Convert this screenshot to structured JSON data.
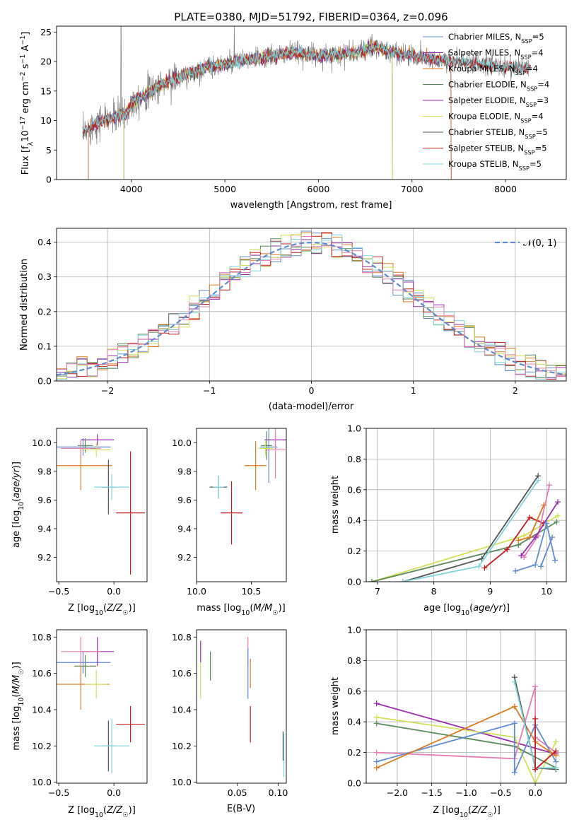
{
  "title": "PLATE=0380, MJD=51792, FIBERID=0364, z=0.096",
  "colors": {
    "Chabrier MILES": "#5f8dd3",
    "Salpeter MILES": "#9b2fae",
    "Kroupa MILES": "#e07a1f",
    "Chabrier ELODIE": "#5a8a5a",
    "Salpeter ELODIE": "#9b2fae",
    "Kroupa ELODIE": "#d4e157",
    "Chabrier STELIB": "#555555",
    "Salpeter STELIB": "#c41e1e",
    "Kroupa STELIB": "#7fd6dd",
    "extra_pink": "#e67fb5",
    "gaussian": "#5f8dd3",
    "data": "#808080"
  },
  "chart_data": [
    {
      "id": "spectrum",
      "type": "line",
      "xlabel": "wavelength [Angstrom, rest frame]",
      "ylabel": "Flux [f_λ10^-17 erg cm^-2 s^-1 A^-1]",
      "xlim": [
        3200,
        8650
      ],
      "ylim": [
        0,
        26
      ],
      "xticks": [
        4000,
        5000,
        6000,
        7000,
        8000
      ],
      "yticks": [
        0,
        5,
        10,
        15,
        20,
        25
      ],
      "legend_position": "top-right",
      "legend": [
        {
          "name": "Chabrier MILES",
          "label": "Chabrier MILES, N",
          "sub": "SSP",
          "rest": "=5"
        },
        {
          "name": "Salpeter MILES",
          "label": "Salpeter MILES, N",
          "sub": "SSP",
          "rest": "=4"
        },
        {
          "name": "Kroupa MILES",
          "label": "Kroupa MILES, N",
          "sub": "SSP",
          "rest": "=4"
        },
        {
          "name": "Chabrier ELODIE",
          "label": "Chabrier ELODIE, N",
          "sub": "SSP",
          "rest": "=4"
        },
        {
          "name": "Salpeter ELODIE",
          "label": "Salpeter ELODIE, N",
          "sub": "SSP",
          "rest": "=3"
        },
        {
          "name": "Kroupa ELODIE",
          "label": "Kroupa ELODIE, N",
          "sub": "SSP",
          "rest": "=4"
        },
        {
          "name": "Chabrier STELIB",
          "label": "Chabrier STELIB, N",
          "sub": "SSP",
          "rest": "=5"
        },
        {
          "name": "Salpeter STELIB",
          "label": "Salpeter STELIB, N",
          "sub": "SSP",
          "rest": "=5"
        },
        {
          "name": "Kroupa STELIB",
          "label": "Kroupa STELIB, N",
          "sub": "SSP",
          "rest": "=5"
        }
      ],
      "continuum": {
        "x": [
          3480,
          3600,
          3800,
          3950,
          4000,
          4200,
          4400,
          4600,
          4800,
          5000,
          5200,
          5400,
          5600,
          5800,
          6000,
          6200,
          6400,
          6600,
          6800,
          7000,
          7200,
          7420
        ],
        "y": [
          7.5,
          9.5,
          10.5,
          11,
          13,
          15,
          16.8,
          17.8,
          19,
          19.5,
          20.2,
          20.6,
          21.2,
          21.5,
          21,
          21.2,
          21.5,
          22.5,
          21.5,
          21,
          20.5,
          20
        ]
      },
      "noisy_data_x_range": [
        3480,
        8270
      ]
    },
    {
      "id": "residuals",
      "type": "histogram",
      "xlabel": "(data-model)/error",
      "ylabel": "Normed distribution",
      "xlim": [
        -2.5,
        2.5
      ],
      "ylim": [
        0,
        0.44
      ],
      "xticks": [
        -2,
        -1,
        0,
        1,
        2
      ],
      "yticks": [
        0.0,
        0.1,
        0.2,
        0.3,
        0.4
      ],
      "grid": true,
      "legend": [
        {
          "label": "𝒩(0, 1)"
        }
      ],
      "legend_position": "top-right",
      "bin_width": 0.1,
      "bin_start": -2.5
    },
    {
      "id": "age_vs_Z",
      "type": "errorbar",
      "xlabel": "Z [log10(Z/Z☉)]",
      "ylabel": "age [log10(age/yr)]",
      "xlim": [
        -0.52,
        0.3
      ],
      "ylim": [
        9.03,
        10.1
      ],
      "xticks": [
        -0.5,
        0.0
      ],
      "yticks": [
        9.2,
        9.4,
        9.6,
        9.8,
        10.0
      ],
      "points": [
        {
          "series": "Chabrier MILES",
          "x": -0.28,
          "y": 9.97,
          "xerr": 0.25,
          "yerr": 0.06
        },
        {
          "series": "Salpeter MILES",
          "x": -0.15,
          "y": 10.02,
          "xerr": 0.15,
          "yerr": 0.04
        },
        {
          "series": "Kroupa MILES",
          "x": -0.3,
          "y": 9.84,
          "xerr": 0.28,
          "yerr": 0.17
        },
        {
          "series": "Chabrier ELODIE",
          "x": -0.26,
          "y": 9.98,
          "xerr": 0.07,
          "yerr": 0.05
        },
        {
          "series": "extra_pink",
          "x": -0.3,
          "y": 9.96,
          "xerr": 0.18,
          "yerr": 0.06
        },
        {
          "series": "Kroupa ELODIE",
          "x": -0.16,
          "y": 9.95,
          "xerr": 0.13,
          "yerr": 0.05
        },
        {
          "series": "Chabrier STELIB",
          "x": -0.05,
          "y": 9.69,
          "xerr": 0.06,
          "yerr": 0.19
        },
        {
          "series": "Salpeter STELIB",
          "x": 0.15,
          "y": 9.51,
          "xerr": 0.13,
          "yerr": 0.43
        },
        {
          "series": "Kroupa STELIB",
          "x": -0.02,
          "y": 9.69,
          "xerr": 0.16,
          "yerr": 0.09
        }
      ]
    },
    {
      "id": "age_vs_mass",
      "type": "errorbar",
      "xlabel": "mass [log10(M/M☉)]",
      "xlim": [
        10.0,
        10.82
      ],
      "ylim": [
        9.03,
        10.1
      ],
      "xticks": [
        10.0,
        10.5
      ],
      "yticks": [
        9.2,
        9.4,
        9.6,
        9.8,
        10.0
      ],
      "points": [
        {
          "series": "Chabrier MILES",
          "x": 10.66,
          "y": 9.97,
          "xerr": 0.08,
          "yerr": 0.25
        },
        {
          "series": "Salpeter MILES",
          "x": 10.72,
          "y": 10.02,
          "xerr": 0.1,
          "yerr": 0.04
        },
        {
          "series": "Kroupa MILES",
          "x": 10.54,
          "y": 9.84,
          "xerr": 0.1,
          "yerr": 0.17
        },
        {
          "series": "Chabrier ELODIE",
          "x": 10.64,
          "y": 9.98,
          "xerr": 0.05,
          "yerr": 0.1
        },
        {
          "series": "extra_pink",
          "x": 10.72,
          "y": 9.95,
          "xerr": 0.09,
          "yerr": 0.2
        },
        {
          "series": "Kroupa ELODIE",
          "x": 10.63,
          "y": 9.96,
          "xerr": 0.07,
          "yerr": 0.05
        },
        {
          "series": "Chabrier STELIB",
          "x": 10.2,
          "y": 9.69,
          "xerr": 0.08,
          "yerr": 0.08
        },
        {
          "series": "Salpeter STELIB",
          "x": 10.32,
          "y": 9.51,
          "xerr": 0.1,
          "yerr": 0.22
        },
        {
          "series": "Kroupa STELIB",
          "x": 10.2,
          "y": 9.69,
          "xerr": 0.05,
          "yerr": 0.08
        }
      ]
    },
    {
      "id": "mass_weight_vs_age",
      "type": "line",
      "xlabel": "age [log10(age/yr)]",
      "ylabel": "mass weight",
      "xlim": [
        6.8,
        10.35
      ],
      "ylim": [
        0,
        1.0
      ],
      "xticks": [
        7,
        8,
        9,
        10
      ],
      "yticks": [
        0.0,
        0.2,
        0.4,
        0.6,
        0.8,
        1.0
      ],
      "grid": true,
      "series": [
        {
          "name": "Kroupa ELODIE",
          "x": [
            6.9,
            9.6,
            10.2
          ],
          "y": [
            0.0,
            0.3,
            0.43
          ]
        },
        {
          "name": "Chabrier ELODIE",
          "x": [
            6.9,
            9.5,
            10.18
          ],
          "y": [
            0.0,
            0.24,
            0.39
          ]
        },
        {
          "name": "Chabrier STELIB",
          "x": [
            7.45,
            8.85,
            9.85
          ],
          "y": [
            0.0,
            0.15,
            0.69
          ]
        },
        {
          "name": "Kroupa STELIB",
          "x": [
            7.45,
            8.8,
            9.85
          ],
          "y": [
            0.0,
            0.1,
            0.66
          ]
        },
        {
          "name": "Salpeter STELIB",
          "x": [
            8.9,
            9.3,
            9.7,
            9.95
          ],
          "y": [
            0.09,
            0.21,
            0.42,
            0.38
          ]
        },
        {
          "name": "Kroupa MILES",
          "x": [
            9.5,
            9.7,
            9.95
          ],
          "y": [
            0.27,
            0.29,
            0.5
          ]
        },
        {
          "name": "extra_pink",
          "x": [
            9.6,
            9.85,
            10.05
          ],
          "y": [
            0.16,
            0.3,
            0.63
          ]
        },
        {
          "name": "Salpeter MILES",
          "x": [
            9.55,
            9.8,
            10.2
          ],
          "y": [
            0.17,
            0.29,
            0.52
          ]
        },
        {
          "name": "Chabrier MILES",
          "x": [
            9.45,
            9.8,
            10.0,
            10.15
          ],
          "y": [
            0.07,
            0.11,
            0.38,
            0.14
          ]
        },
        {
          "name": "Chabrier MILES",
          "x": [
            9.9,
            10.1
          ],
          "y": [
            0.1,
            0.29
          ]
        }
      ]
    },
    {
      "id": "mass_vs_Z",
      "type": "errorbar",
      "xlabel": "Z [log10(Z/Z☉)]",
      "ylabel": "mass [log10(M/M☉)]",
      "xlim": [
        -0.52,
        0.3
      ],
      "ylim": [
        9.995,
        10.84
      ],
      "xticks": [
        -0.5,
        0.0
      ],
      "yticks": [
        10.0,
        10.2,
        10.4,
        10.6,
        10.8
      ],
      "points": [
        {
          "series": "Chabrier MILES",
          "x": -0.28,
          "y": 10.66,
          "xerr": 0.25,
          "yerr": 0.06
        },
        {
          "series": "Salpeter MILES",
          "x": -0.15,
          "y": 10.72,
          "xerr": 0.15,
          "yerr": 0.08
        },
        {
          "series": "Kroupa MILES",
          "x": -0.3,
          "y": 10.54,
          "xerr": 0.26,
          "yerr": 0.14
        },
        {
          "series": "Chabrier ELODIE",
          "x": -0.26,
          "y": 10.64,
          "xerr": 0.1,
          "yerr": 0.06
        },
        {
          "series": "extra_pink",
          "x": -0.3,
          "y": 10.72,
          "xerr": 0.18,
          "yerr": 0.08
        },
        {
          "series": "Kroupa ELODIE",
          "x": -0.16,
          "y": 10.54,
          "xerr": 0.1,
          "yerr": 0.08
        },
        {
          "series": "Chabrier STELIB",
          "x": -0.05,
          "y": 10.2,
          "xerr": 0.06,
          "yerr": 0.14
        },
        {
          "series": "Salpeter STELIB",
          "x": 0.15,
          "y": 10.32,
          "xerr": 0.13,
          "yerr": 0.1
        },
        {
          "series": "Kroupa STELIB",
          "x": -0.02,
          "y": 10.2,
          "xerr": 0.16,
          "yerr": 0.15
        }
      ]
    },
    {
      "id": "mass_vs_ebv",
      "type": "errorbar",
      "xlabel": "E(B-V)",
      "xlim": [
        0.0,
        0.11
      ],
      "ylim": [
        9.995,
        10.84
      ],
      "xticks": [
        0.05,
        0.1
      ],
      "yticks": [
        10.0,
        10.2,
        10.4,
        10.6,
        10.8
      ],
      "points": [
        {
          "series": "Salpeter ELODIE",
          "x": 0.005,
          "y": 10.72,
          "yerr": 0.06
        },
        {
          "series": "Kroupa ELODIE",
          "x": 0.005,
          "y": 10.56,
          "yerr": 0.1
        },
        {
          "series": "Chabrier ELODIE",
          "x": 0.017,
          "y": 10.64,
          "yerr": 0.08
        },
        {
          "series": "extra_pink",
          "x": 0.063,
          "y": 10.72,
          "yerr": 0.08
        },
        {
          "series": "Chabrier MILES",
          "x": 0.063,
          "y": 10.6,
          "yerr": 0.14
        },
        {
          "series": "Kroupa MILES",
          "x": 0.066,
          "y": 10.6,
          "yerr": 0.08
        },
        {
          "series": "Salpeter STELIB",
          "x": 0.066,
          "y": 10.32,
          "yerr": 0.1
        },
        {
          "series": "Chabrier STELIB",
          "x": 0.106,
          "y": 10.2,
          "yerr": 0.08
        },
        {
          "series": "Kroupa STELIB",
          "x": 0.107,
          "y": 10.15,
          "yerr": 0.12
        }
      ]
    },
    {
      "id": "mass_weight_vs_Z",
      "type": "line",
      "xlabel": "Z [log10(Z/Z☉)]",
      "ylabel": "mass weight",
      "xlim": [
        -2.45,
        0.45
      ],
      "ylim": [
        0,
        1.0
      ],
      "xticks": [
        -2.0,
        -1.5,
        -1.0,
        -0.5,
        0.0
      ],
      "yticks": [
        0.0,
        0.2,
        0.4,
        0.6,
        0.8,
        1.0
      ],
      "grid": true,
      "series": [
        {
          "name": "Salpeter MILES",
          "x": [
            -2.3,
            0.3
          ],
          "y": [
            0.52,
            0.19
          ]
        },
        {
          "name": "Kroupa ELODIE",
          "x": [
            -2.3,
            -0.3,
            0.0,
            0.3
          ],
          "y": [
            0.43,
            0.3,
            0.0,
            0.27
          ]
        },
        {
          "name": "Chabrier ELODIE",
          "x": [
            -2.3,
            -0.3,
            0.3
          ],
          "y": [
            0.39,
            0.24,
            0.1
          ]
        },
        {
          "name": "extra_pink",
          "x": [
            -2.3,
            -0.3,
            0.0,
            0.0,
            0.3
          ],
          "y": [
            0.2,
            0.16,
            0.63,
            0.3,
            0.2
          ]
        },
        {
          "name": "Chabrier MILES",
          "x": [
            -2.3,
            -0.3,
            -0.3,
            0.0,
            0.3
          ],
          "y": [
            0.14,
            0.39,
            0.07,
            0.38,
            0.14
          ]
        },
        {
          "name": "Kroupa MILES",
          "x": [
            -2.3,
            -0.3,
            0.0,
            0.3
          ],
          "y": [
            0.1,
            0.5,
            0.27,
            0.18
          ]
        },
        {
          "name": "Chabrier STELIB",
          "x": [
            -0.3,
            0.0,
            0.0,
            0.3
          ],
          "y": [
            0.69,
            0.1,
            0.1,
            0.09
          ]
        },
        {
          "name": "Kroupa STELIB",
          "x": [
            -0.3,
            0.0,
            0.3
          ],
          "y": [
            0.66,
            0.1,
            0.1
          ]
        },
        {
          "name": "Salpeter STELIB",
          "x": [
            0.0,
            0.0,
            0.3
          ],
          "y": [
            0.42,
            0.09,
            0.21
          ]
        }
      ]
    }
  ]
}
